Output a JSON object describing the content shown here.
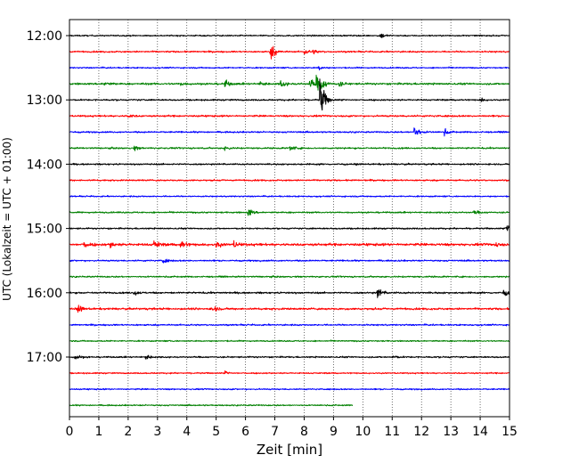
{
  "chart_data": {
    "type": "line",
    "title": "",
    "xlabel": "Zeit  [min]",
    "ylabel": "UTC (Lokalzeit = UTC + 01:00)",
    "xlim": [
      0,
      15
    ],
    "x_ticks": [
      0,
      1,
      2,
      3,
      4,
      5,
      6,
      7,
      8,
      9,
      10,
      11,
      12,
      13,
      14,
      15
    ],
    "x_tick_labels": [
      "0",
      "1",
      "2",
      "3",
      "4",
      "5",
      "6",
      "7",
      "8",
      "9",
      "10",
      "11",
      "12",
      "13",
      "14",
      "15"
    ],
    "y_tick_labels": [
      "12:00",
      "13:00",
      "14:00",
      "15:00",
      "16:00",
      "17:00"
    ],
    "grid": "vertical dotted",
    "trace_minutes": 15,
    "color_cycle": [
      "#000000",
      "#ff0000",
      "#0000ff",
      "#008000"
    ],
    "series": [
      {
        "start": "12:00",
        "end_min": 15,
        "noise": 0.7,
        "events": [
          {
            "min": 10.6,
            "amp": 2.8
          }
        ]
      },
      {
        "start": "12:15",
        "end_min": 15,
        "noise": 0.8,
        "events": [
          {
            "min": 6.85,
            "amp": 8.5
          },
          {
            "min": 8.0,
            "amp": 2.2
          },
          {
            "min": 8.3,
            "amp": 1.8
          }
        ]
      },
      {
        "start": "12:30",
        "end_min": 15,
        "noise": 0.7,
        "events": [
          {
            "min": 8.5,
            "amp": 1.8
          }
        ]
      },
      {
        "start": "12:45",
        "end_min": 15,
        "noise": 1.0,
        "events": [
          {
            "min": 1.2,
            "amp": 2.2
          },
          {
            "min": 3.8,
            "amp": 1.8
          },
          {
            "min": 5.3,
            "amp": 3.5
          },
          {
            "min": 6.5,
            "amp": 2.5
          },
          {
            "min": 7.2,
            "amp": 4.0
          },
          {
            "min": 8.2,
            "amp": 5.5
          },
          {
            "min": 8.4,
            "amp": 7.0
          },
          {
            "min": 8.6,
            "amp": 4.5
          },
          {
            "min": 9.2,
            "amp": 2.2
          }
        ]
      },
      {
        "start": "13:00",
        "end_min": 15,
        "noise": 0.8,
        "events": [
          {
            "min": 8.55,
            "amp": 22
          },
          {
            "min": 14.0,
            "amp": 2.0
          }
        ]
      },
      {
        "start": "13:15",
        "end_min": 15,
        "noise": 0.9,
        "events": [
          {
            "min": 2.0,
            "amp": 1.8
          }
        ]
      },
      {
        "start": "13:30",
        "end_min": 15,
        "noise": 0.8,
        "events": [
          {
            "min": 11.75,
            "amp": 8.0
          },
          {
            "min": 12.8,
            "amp": 2.5
          }
        ]
      },
      {
        "start": "13:45",
        "end_min": 15,
        "noise": 0.8,
        "events": [
          {
            "min": 2.2,
            "amp": 2.0
          },
          {
            "min": 5.3,
            "amp": 2.0
          },
          {
            "min": 7.5,
            "amp": 3.5
          }
        ]
      },
      {
        "start": "14:00",
        "end_min": 15,
        "noise": 0.8,
        "events": []
      },
      {
        "start": "14:15",
        "end_min": 15,
        "noise": 0.8,
        "events": []
      },
      {
        "start": "14:30",
        "end_min": 15,
        "noise": 0.7,
        "events": []
      },
      {
        "start": "14:45",
        "end_min": 15,
        "noise": 0.8,
        "events": [
          {
            "min": 6.1,
            "amp": 4.0
          },
          {
            "min": 13.8,
            "amp": 2.0
          }
        ]
      },
      {
        "start": "15:00",
        "end_min": 15,
        "noise": 0.8,
        "events": [
          {
            "min": 14.9,
            "amp": 5.0
          }
        ]
      },
      {
        "start": "15:15",
        "end_min": 15,
        "noise": 1.3,
        "events": [
          {
            "min": 0.5,
            "amp": 3.0
          },
          {
            "min": 1.4,
            "amp": 2.5
          },
          {
            "min": 2.9,
            "amp": 3.5
          },
          {
            "min": 3.8,
            "amp": 4.5
          },
          {
            "min": 5.0,
            "amp": 3.5
          },
          {
            "min": 5.6,
            "amp": 3.0
          },
          {
            "min": 14.5,
            "amp": 2.5
          }
        ]
      },
      {
        "start": "15:30",
        "end_min": 15,
        "noise": 0.8,
        "events": [
          {
            "min": 3.2,
            "amp": 2.0
          }
        ]
      },
      {
        "start": "15:45",
        "end_min": 15,
        "noise": 0.8,
        "events": []
      },
      {
        "start": "16:00",
        "end_min": 15,
        "noise": 0.9,
        "events": [
          {
            "min": 2.2,
            "amp": 2.5
          },
          {
            "min": 10.5,
            "amp": 5.5
          },
          {
            "min": 14.8,
            "amp": 3.0
          }
        ]
      },
      {
        "start": "16:15",
        "end_min": 15,
        "noise": 1.0,
        "events": [
          {
            "min": 0.3,
            "amp": 3.0
          },
          {
            "min": 4.85,
            "amp": 4.5
          }
        ]
      },
      {
        "start": "16:30",
        "end_min": 15,
        "noise": 0.8,
        "events": []
      },
      {
        "start": "16:45",
        "end_min": 15,
        "noise": 0.7,
        "events": []
      },
      {
        "start": "17:00",
        "end_min": 15,
        "noise": 0.8,
        "events": [
          {
            "min": 0.2,
            "amp": 3.0
          },
          {
            "min": 2.6,
            "amp": 2.5
          },
          {
            "min": 11.0,
            "amp": 2.0
          }
        ]
      },
      {
        "start": "17:15",
        "end_min": 15,
        "noise": 0.7,
        "events": [
          {
            "min": 5.3,
            "amp": 2.0
          }
        ]
      },
      {
        "start": "17:30",
        "end_min": 15,
        "noise": 0.7,
        "events": []
      },
      {
        "start": "17:45",
        "end_min": 9.65,
        "noise": 0.7,
        "events": []
      }
    ]
  }
}
